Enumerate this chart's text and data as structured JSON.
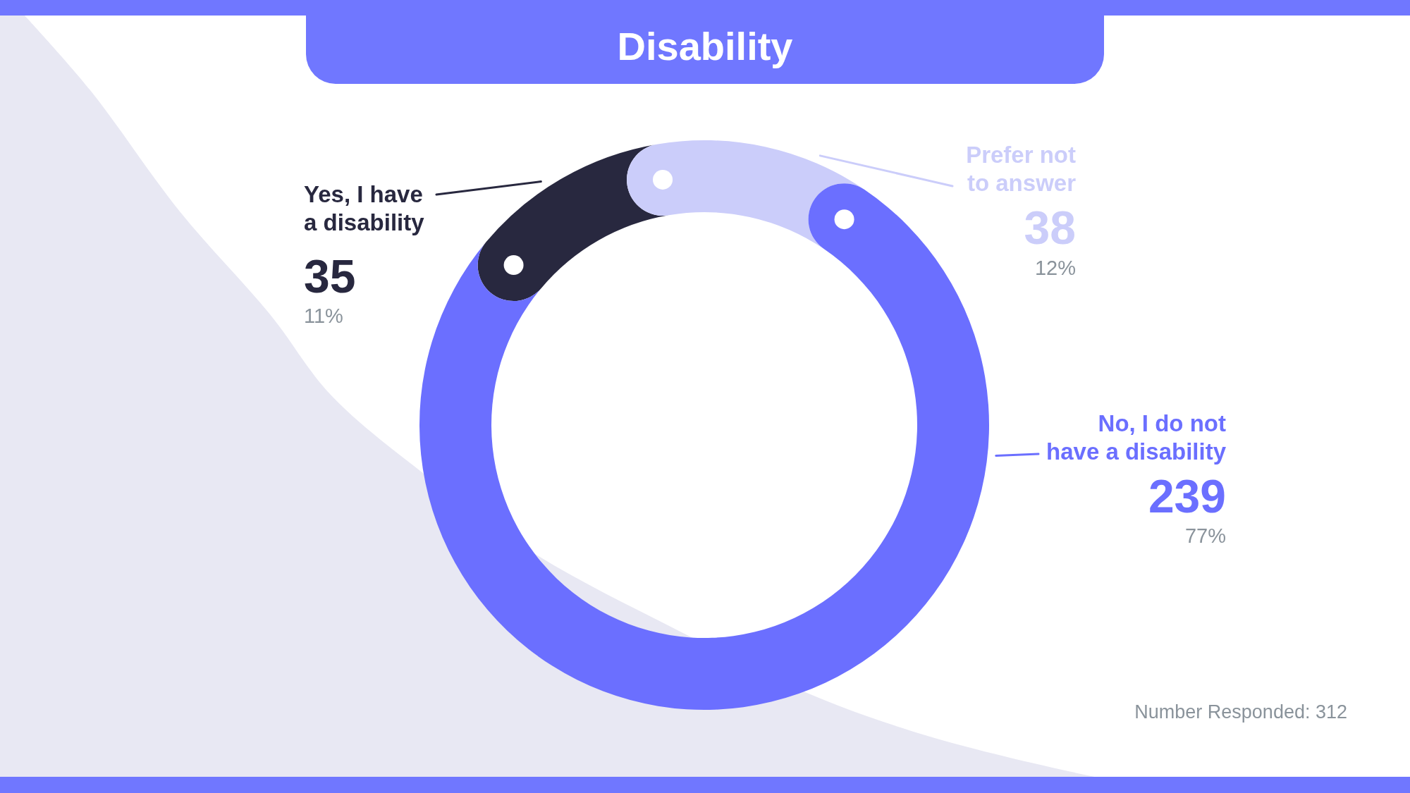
{
  "chart_data": {
    "type": "donut",
    "title": "Disability",
    "categories": [
      "Yes, I have a disability",
      "Prefer not to answer",
      "No, I do not have a disability"
    ],
    "values": [
      35,
      38,
      239
    ],
    "colors": [
      "#28283f",
      "#cbcdfa",
      "#6b6fff"
    ],
    "data_labels": true,
    "annotations": [
      {
        "text": "11%",
        "x": "Yes, I have a disability"
      },
      {
        "text": "12%",
        "x": "Prefer not to answer"
      },
      {
        "text": "77%",
        "x": "No, I do not have a disability"
      },
      "Number Responded: 312"
    ]
  }
}
